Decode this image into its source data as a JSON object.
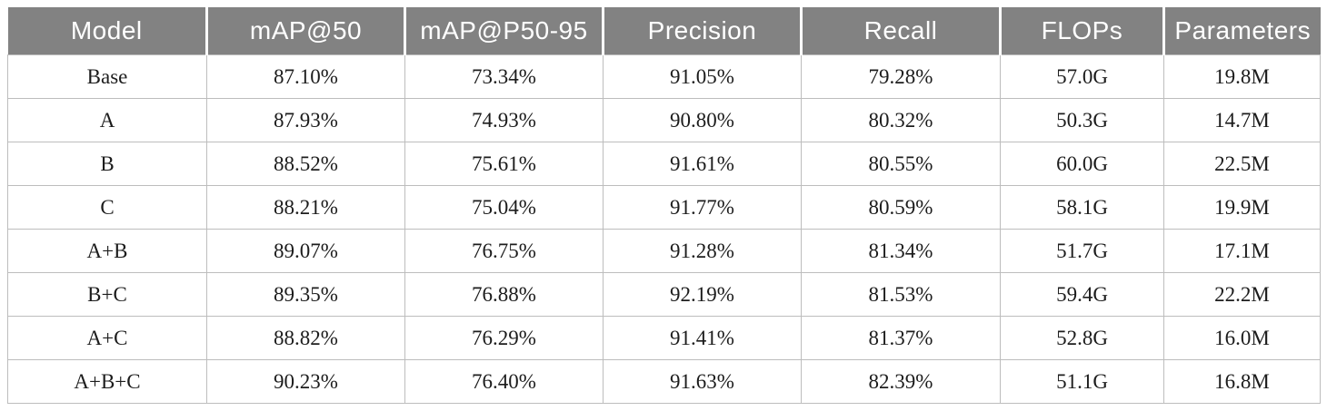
{
  "colors": {
    "header_background": "#828282",
    "header_text": "#ffffff",
    "body_text": "#1c1c1c",
    "grid_line": "#bdbdbd"
  },
  "table": {
    "columns": [
      "Model",
      "mAP@50",
      "mAP@P50-95",
      "Precision",
      "Recall",
      "FLOPs",
      "Parameters"
    ],
    "rows": [
      [
        "Base",
        "87.10%",
        "73.34%",
        "91.05%",
        "79.28%",
        "57.0G",
        "19.8M"
      ],
      [
        "A",
        "87.93%",
        "74.93%",
        "90.80%",
        "80.32%",
        "50.3G",
        "14.7M"
      ],
      [
        "B",
        "88.52%",
        "75.61%",
        "91.61%",
        "80.55%",
        "60.0G",
        "22.5M"
      ],
      [
        "C",
        "88.21%",
        "75.04%",
        "91.77%",
        "80.59%",
        "58.1G",
        "19.9M"
      ],
      [
        "A+B",
        "89.07%",
        "76.75%",
        "91.28%",
        "81.34%",
        "51.7G",
        "17.1M"
      ],
      [
        "B+C",
        "89.35%",
        "76.88%",
        "92.19%",
        "81.53%",
        "59.4G",
        "22.2M"
      ],
      [
        "A+C",
        "88.82%",
        "76.29%",
        "91.41%",
        "81.37%",
        "52.8G",
        "16.0M"
      ],
      [
        "A+B+C",
        "90.23%",
        "76.40%",
        "91.63%",
        "82.39%",
        "51.1G",
        "16.8M"
      ]
    ]
  }
}
